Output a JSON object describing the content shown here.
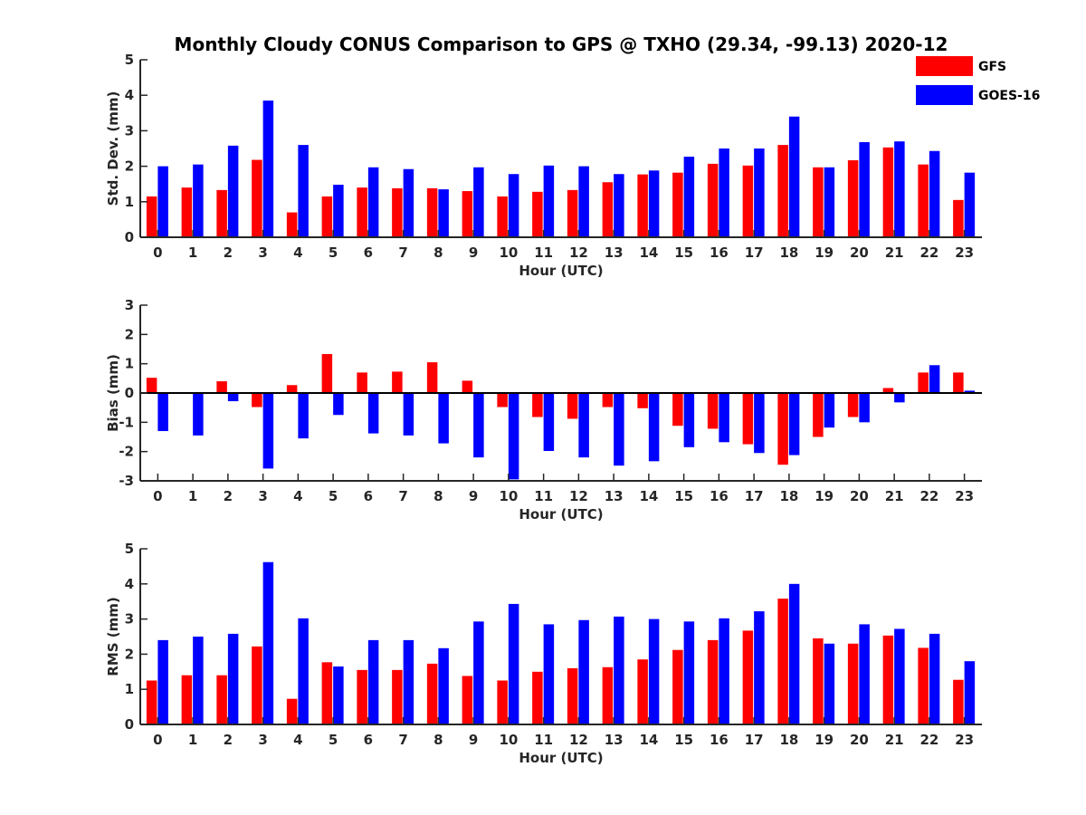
{
  "figure_title": "Monthly Cloudy CONUS Comparison to GPS @ TXHO (29.34, -99.13) 2020-12",
  "colors": {
    "GFS": "#ff0000",
    "GOES-16": "#0000ff",
    "axis": "#262626"
  },
  "legend": {
    "placement": "top-right",
    "entries": [
      "GFS",
      "GOES-16"
    ]
  },
  "chart_data": [
    {
      "type": "bar",
      "xlabel": "Hour (UTC)",
      "ylabel": "Std. Dev. (mm)",
      "ylim": [
        0,
        5
      ],
      "yticks": [
        0,
        1,
        2,
        3,
        4,
        5
      ],
      "categories": [
        "0",
        "1",
        "2",
        "3",
        "4",
        "5",
        "6",
        "7",
        "8",
        "9",
        "10",
        "11",
        "12",
        "13",
        "14",
        "15",
        "16",
        "17",
        "18",
        "19",
        "20",
        "21",
        "22",
        "23"
      ],
      "series": [
        {
          "name": "GFS",
          "values": [
            1.15,
            1.4,
            1.33,
            2.18,
            0.7,
            1.15,
            1.4,
            1.38,
            1.38,
            1.3,
            1.15,
            1.28,
            1.33,
            1.55,
            1.77,
            1.82,
            2.07,
            2.02,
            2.6,
            1.97,
            2.17,
            2.53,
            2.05,
            1.05
          ]
        },
        {
          "name": "GOES-16",
          "values": [
            2.0,
            2.05,
            2.58,
            3.85,
            2.6,
            1.48,
            1.97,
            1.92,
            1.35,
            1.97,
            1.78,
            2.02,
            2.0,
            1.78,
            1.88,
            2.27,
            2.5,
            2.5,
            3.4,
            1.97,
            2.68,
            2.7,
            2.43,
            1.82
          ]
        }
      ]
    },
    {
      "type": "bar",
      "xlabel": "Hour (UTC)",
      "ylabel": "Bias (mm)",
      "ylim": [
        -3,
        3
      ],
      "yticks": [
        -3,
        -2,
        -1,
        0,
        1,
        2,
        3
      ],
      "categories": [
        "0",
        "1",
        "2",
        "3",
        "4",
        "5",
        "6",
        "7",
        "8",
        "9",
        "10",
        "11",
        "12",
        "13",
        "14",
        "15",
        "16",
        "17",
        "18",
        "19",
        "20",
        "21",
        "22",
        "23"
      ],
      "series": [
        {
          "name": "GFS",
          "values": [
            0.52,
            0.03,
            0.4,
            -0.48,
            0.27,
            1.33,
            0.7,
            0.73,
            1.05,
            0.42,
            -0.48,
            -0.82,
            -0.88,
            -0.48,
            -0.52,
            -1.12,
            -1.22,
            -1.75,
            -2.45,
            -1.5,
            -0.82,
            0.17,
            0.7,
            0.7
          ]
        },
        {
          "name": "GOES-16",
          "values": [
            -1.3,
            -1.45,
            -0.28,
            -2.58,
            -1.55,
            -0.75,
            -1.38,
            -1.45,
            -1.72,
            -2.2,
            -2.95,
            -1.98,
            -2.2,
            -2.48,
            -2.33,
            -1.85,
            -1.68,
            -2.05,
            -2.12,
            -1.18,
            -1.0,
            -0.32,
            0.95,
            0.08
          ]
        }
      ]
    },
    {
      "type": "bar",
      "xlabel": "Hour (UTC)",
      "ylabel": "RMS (mm)",
      "ylim": [
        0,
        5
      ],
      "yticks": [
        0,
        1,
        2,
        3,
        4,
        5
      ],
      "categories": [
        "0",
        "1",
        "2",
        "3",
        "4",
        "5",
        "6",
        "7",
        "8",
        "9",
        "10",
        "11",
        "12",
        "13",
        "14",
        "15",
        "16",
        "17",
        "18",
        "19",
        "20",
        "21",
        "22",
        "23"
      ],
      "series": [
        {
          "name": "GFS",
          "values": [
            1.25,
            1.4,
            1.4,
            2.22,
            0.73,
            1.77,
            1.55,
            1.55,
            1.73,
            1.38,
            1.25,
            1.5,
            1.6,
            1.63,
            1.85,
            2.12,
            2.4,
            2.67,
            3.58,
            2.45,
            2.3,
            2.53,
            2.18,
            1.27
          ]
        },
        {
          "name": "GOES-16",
          "values": [
            2.4,
            2.5,
            2.58,
            4.62,
            3.02,
            1.65,
            2.4,
            2.4,
            2.17,
            2.93,
            3.43,
            2.85,
            2.97,
            3.07,
            3.0,
            2.93,
            3.02,
            3.22,
            4.0,
            2.3,
            2.85,
            2.72,
            2.58,
            1.8
          ]
        }
      ]
    }
  ]
}
